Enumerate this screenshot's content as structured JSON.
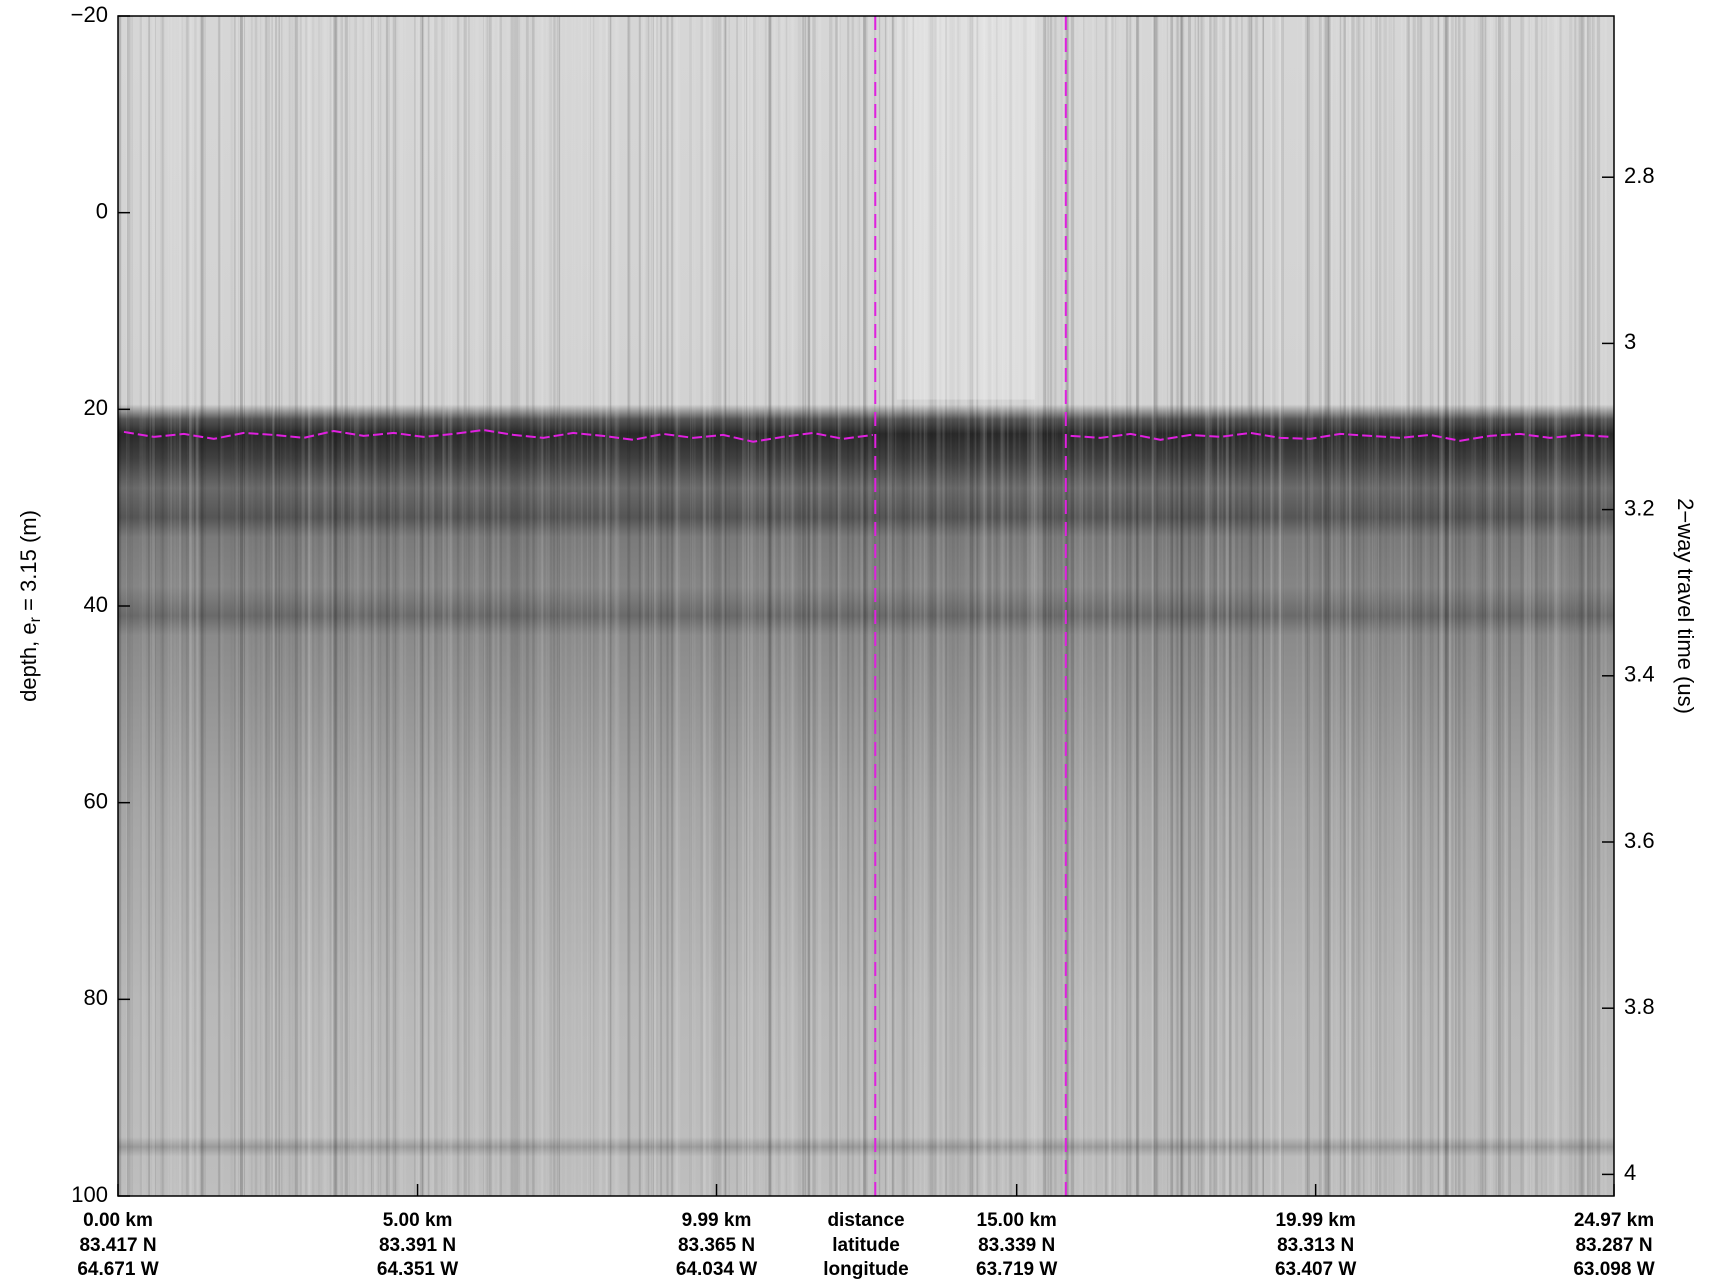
{
  "chart_data": {
    "type": "radargram",
    "ylabel": "depth, e",
    "ylabel_subscript": "r",
    "ylabel_rest": " = 3.15 (m)",
    "y2label": "2−way travel time (us)",
    "ylim": [
      -20,
      100
    ],
    "yticks": [
      {
        "value": -20,
        "label": "−20"
      },
      0,
      20,
      40,
      60,
      80,
      100
    ],
    "y2lim": [
      2.606,
      4.026
    ],
    "y2ticks": [
      2.8,
      3,
      3.2,
      3.4,
      3.6,
      3.8,
      4
    ],
    "xlim": [
      0,
      24.97
    ],
    "xticks": [
      {
        "value": 0,
        "label": "0.00 km"
      },
      {
        "value": 5,
        "label": "5.00 km"
      },
      {
        "value": 9.99,
        "label": "9.99 km"
      },
      {
        "value": 15,
        "label": "15.00 km"
      },
      {
        "value": 19.99,
        "label": "19.99 km"
      },
      {
        "value": 24.97,
        "label": "24.97 km"
      }
    ],
    "xtick_latitudes": [
      "83.417 N",
      "83.391 N",
      "83.365 N",
      "83.339 N",
      "83.313 N",
      "83.287 N"
    ],
    "xtick_longitudes": [
      "64.671 W",
      "64.351 W",
      "64.034 W",
      "63.719 W",
      "63.407 W",
      "63.098 W"
    ],
    "row_labels": [
      "distance",
      "latitude",
      "longitude"
    ],
    "markers": {
      "color": "#e020e0",
      "x": [
        12.64,
        15.82
      ]
    },
    "series": [
      {
        "color": "#e020e0",
        "x": [
          0.1,
          0.6,
          1.1,
          1.6,
          2.1,
          2.6,
          3.1,
          3.6,
          4.1,
          4.6,
          5.1,
          5.6,
          6.1,
          6.6,
          7.1,
          7.6,
          8.1,
          8.6,
          9.1,
          9.6,
          10.1,
          10.6,
          11.1,
          11.6,
          12.1,
          12.6,
          14.2,
          15.9,
          16.4,
          16.9,
          17.4,
          17.9,
          18.4,
          18.9,
          19.4,
          19.9,
          20.4,
          20.9,
          21.4,
          21.9,
          22.4,
          22.9,
          23.4,
          23.9,
          24.4,
          24.9
        ],
        "values": [
          22.3,
          22.8,
          22.5,
          23.0,
          22.4,
          22.6,
          22.9,
          22.2,
          22.7,
          22.4,
          22.8,
          22.5,
          22.1,
          22.6,
          22.9,
          22.4,
          22.7,
          23.1,
          22.5,
          22.9,
          22.6,
          23.3,
          22.8,
          22.4,
          23.0,
          22.6,
          null,
          22.7,
          22.9,
          22.5,
          23.1,
          22.6,
          22.8,
          22.4,
          22.9,
          23.0,
          22.5,
          22.7,
          22.9,
          22.6,
          23.2,
          22.7,
          22.5,
          22.9,
          22.6,
          22.8
        ]
      }
    ]
  }
}
